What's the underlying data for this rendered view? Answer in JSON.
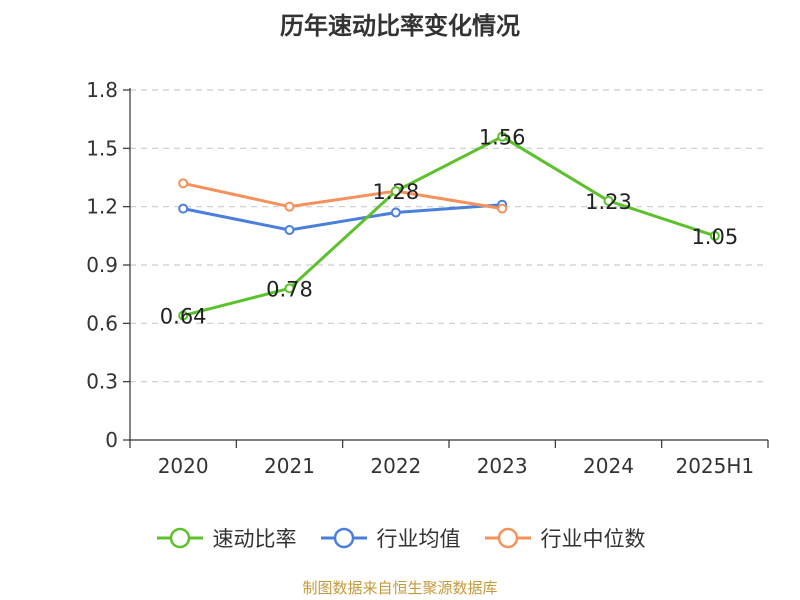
{
  "title": "历年速动比率变化情况",
  "source": "制图数据来自恒生聚源数据库",
  "chart_data": {
    "type": "line",
    "title": "历年速动比率变化情况",
    "categories": [
      "2020",
      "2021",
      "2022",
      "2023",
      "2024",
      "2025H1"
    ],
    "ylim": [
      0,
      1.8
    ],
    "yticks": [
      0,
      0.3,
      0.6,
      0.9,
      1.2,
      1.5,
      1.8
    ],
    "ytick_labels": [
      "0",
      "0.3",
      "0.6",
      "0.9",
      "1.2",
      "1.5",
      "1.8"
    ],
    "grid": true,
    "legend_position": "bottom",
    "series": [
      {
        "name": "速动比率",
        "color": "#5dc12e",
        "values": [
          0.64,
          0.78,
          1.28,
          1.56,
          1.23,
          1.05
        ],
        "data_labels": [
          "0.64",
          "0.78",
          "1.28",
          "1.56",
          "1.23",
          "1.05"
        ]
      },
      {
        "name": "行业均值",
        "color": "#4a7fdb",
        "values": [
          1.19,
          1.08,
          1.17,
          1.21,
          null,
          null
        ]
      },
      {
        "name": "行业中位数",
        "color": "#f5915b",
        "values": [
          1.32,
          1.2,
          1.28,
          1.19,
          null,
          null
        ]
      }
    ]
  }
}
